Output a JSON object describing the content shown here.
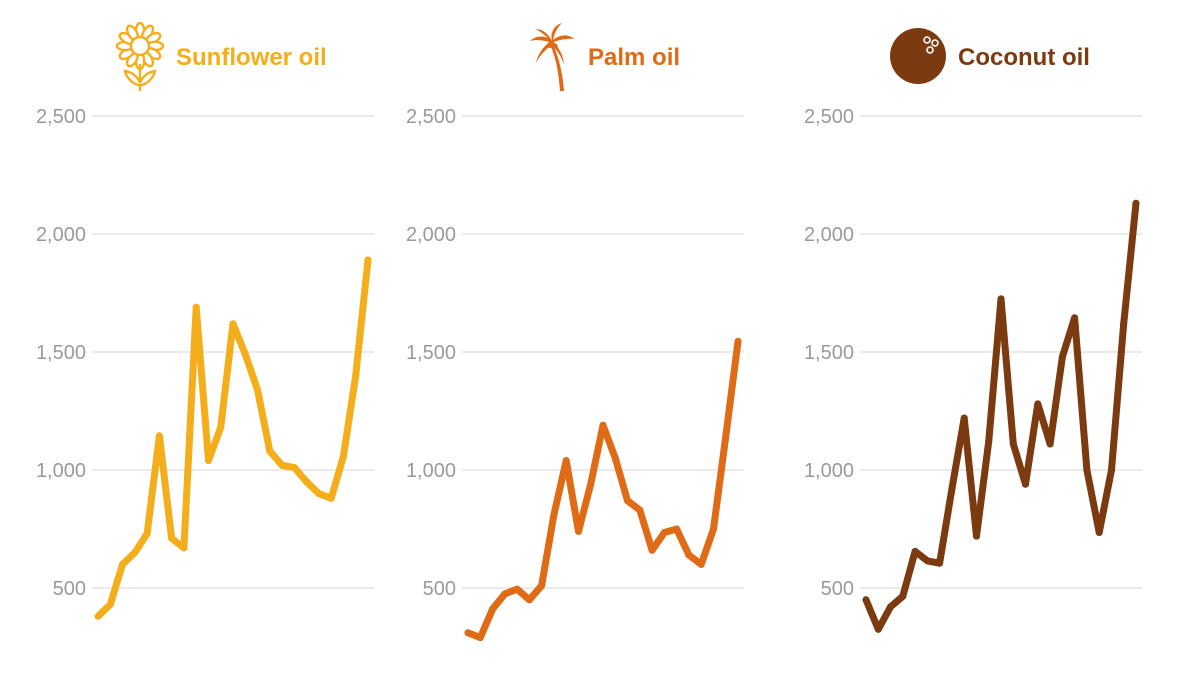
{
  "chart_data": [
    {
      "type": "line",
      "title": "Sunflower oil",
      "icon": "sunflower-icon",
      "color": "#f5ae1b",
      "ylim": [
        300,
        2500
      ],
      "yticks": [
        "2,500",
        "2,000",
        "1,500",
        "1,000",
        "500"
      ],
      "ytick_values": [
        2500,
        2000,
        1500,
        1000,
        500
      ],
      "grid": true,
      "values": [
        380,
        430,
        600,
        650,
        730,
        1145,
        710,
        670,
        1690,
        1040,
        1180,
        1620,
        1490,
        1340,
        1080,
        1020,
        1010,
        950,
        900,
        880,
        1060,
        1400,
        1890
      ]
    },
    {
      "type": "line",
      "title": "Palm oil",
      "icon": "palm-tree-icon",
      "color": "#e06b16",
      "ylim": [
        300,
        2500
      ],
      "yticks": [
        "2,500",
        "2,000",
        "1,500",
        "1,000",
        "500"
      ],
      "ytick_values": [
        2500,
        2000,
        1500,
        1000,
        500
      ],
      "grid": true,
      "values": [
        310,
        290,
        410,
        475,
        495,
        450,
        510,
        810,
        1040,
        740,
        940,
        1190,
        1050,
        870,
        830,
        660,
        735,
        750,
        640,
        600,
        750,
        1140,
        1545
      ]
    },
    {
      "type": "line",
      "title": "Coconut oil",
      "icon": "coconut-icon",
      "color": "#7b3a0f",
      "ylim": [
        300,
        2500
      ],
      "yticks": [
        "2,500",
        "2,000",
        "1,500",
        "1,000",
        "500"
      ],
      "ytick_values": [
        2500,
        2000,
        1500,
        1000,
        500
      ],
      "grid": true,
      "values": [
        450,
        325,
        420,
        465,
        655,
        615,
        605,
        920,
        1220,
        720,
        1120,
        1725,
        1110,
        940,
        1280,
        1110,
        1480,
        1645,
        1000,
        735,
        1000,
        1620,
        2130
      ]
    }
  ]
}
